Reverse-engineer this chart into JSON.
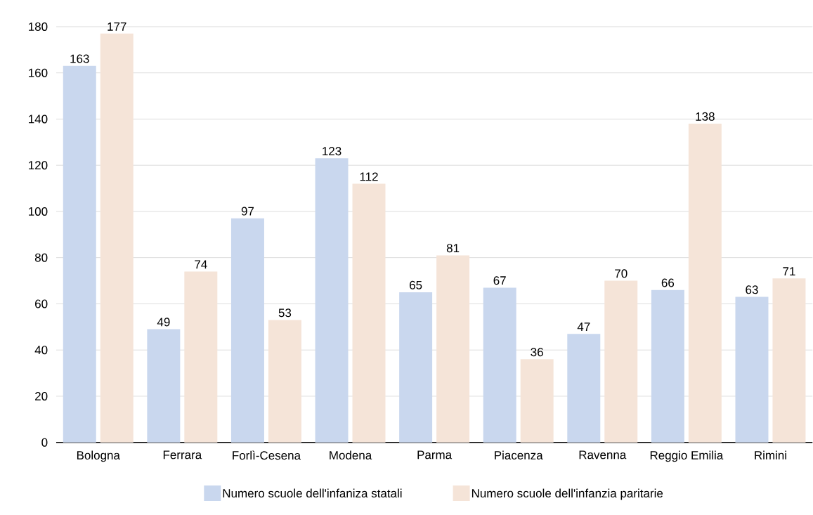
{
  "chart_data": {
    "type": "bar",
    "categories": [
      "Bologna",
      "Ferrara",
      "Forlì-Cesena",
      "Modena",
      "Parma",
      "Piacenza",
      "Ravenna",
      "Reggio Emilia",
      "Rimini"
    ],
    "series": [
      {
        "name": "Numero scuole dell'infaniza statali",
        "color": "#c9d7ee",
        "values": [
          163,
          49,
          97,
          123,
          65,
          67,
          47,
          66,
          63
        ]
      },
      {
        "name": "Numero scuole dell'infanzia paritarie",
        "color": "#f5e4d8",
        "values": [
          177,
          74,
          53,
          112,
          81,
          36,
          70,
          138,
          71
        ]
      }
    ],
    "ylim": [
      0,
      180
    ],
    "yticks": [
      0,
      20,
      40,
      60,
      80,
      100,
      120,
      140,
      160,
      180
    ],
    "grid": "y",
    "legend": "bottom",
    "data_labels": true
  }
}
